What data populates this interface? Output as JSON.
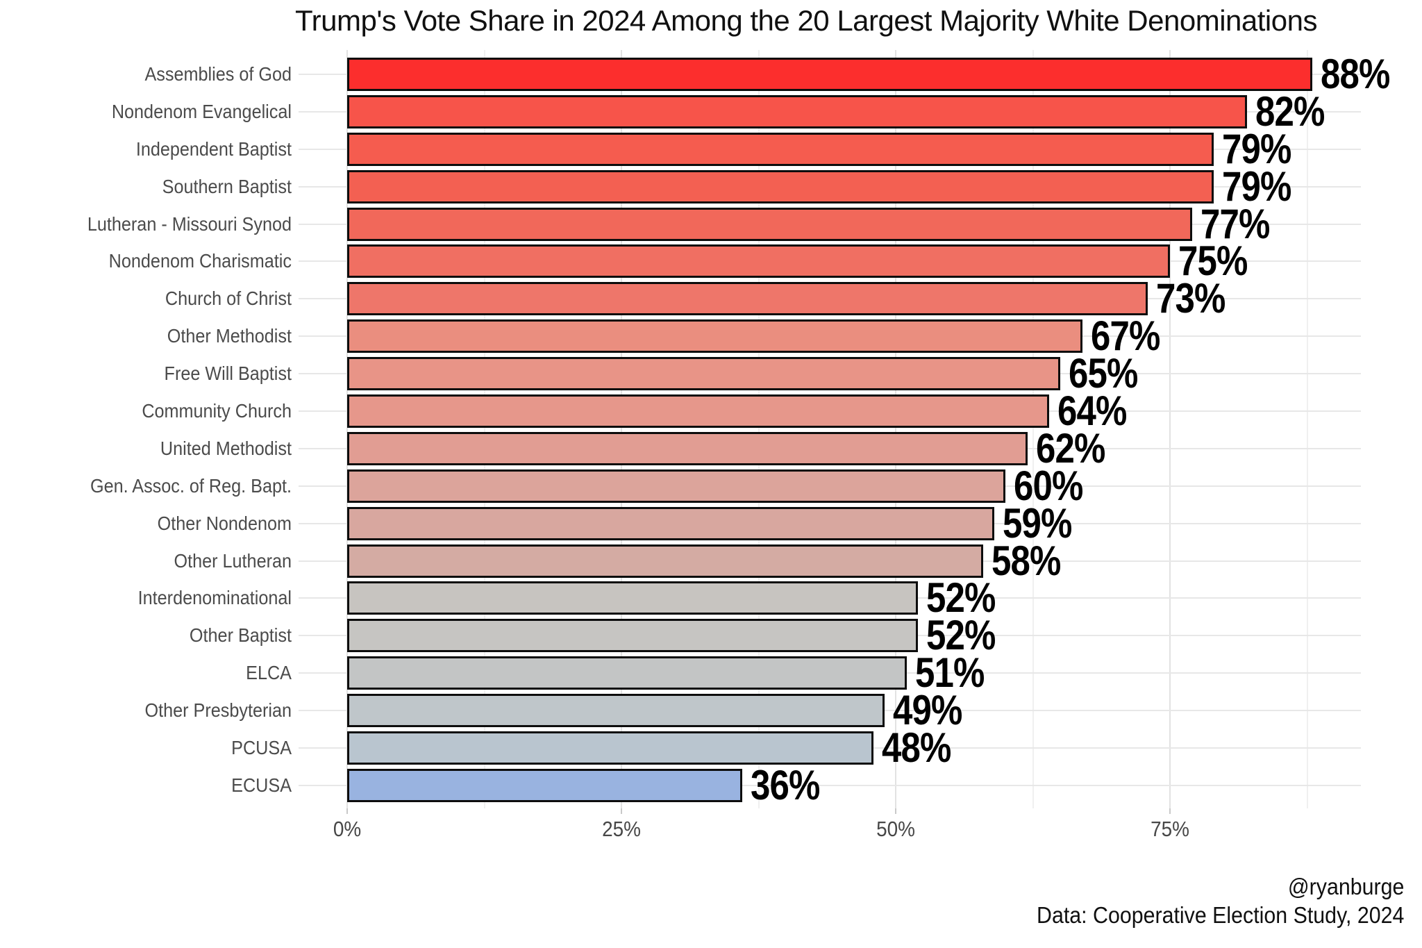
{
  "page": {
    "background": "#ffffff"
  },
  "chart_data": {
    "type": "bar",
    "orientation": "horizontal",
    "title": "Trump's Vote Share in 2024 Among the 20 Largest Majority White Denominations",
    "categories": [
      "Assemblies of God",
      "Nondenom Evangelical",
      "Independent Baptist",
      "Southern Baptist",
      "Lutheran - Missouri Synod",
      "Nondenom Charismatic",
      "Church of Christ",
      "Other Methodist",
      "Free Will Baptist",
      "Community Church",
      "United Methodist",
      "Gen. Assoc. of Reg. Bapt.",
      "Other Nondenom",
      "Other Lutheran",
      "Interdenominational",
      "Other Baptist",
      "ELCA",
      "Other Presbyterian",
      "PCUSA",
      "ECUSA"
    ],
    "values": [
      88,
      82,
      79,
      79,
      77,
      75,
      73,
      67,
      65,
      64,
      62,
      60,
      59,
      58,
      52,
      52,
      51,
      49,
      48,
      36
    ],
    "value_labels": [
      "88%",
      "82%",
      "79%",
      "79%",
      "77%",
      "75%",
      "73%",
      "67%",
      "65%",
      "64%",
      "62%",
      "60%",
      "59%",
      "58%",
      "52%",
      "52%",
      "51%",
      "49%",
      "48%",
      "36%"
    ],
    "bar_colors": [
      "#FC2E2D",
      "#F7544A",
      "#F55C4F",
      "#F36052",
      "#F1685A",
      "#F06F62",
      "#EE766A",
      "#EA8E7F",
      "#E89487",
      "#E6978B",
      "#E19D93",
      "#DCA49B",
      "#D8A79F",
      "#D4ABA3",
      "#C7C4C0",
      "#C6C5C2",
      "#C3C5C5",
      "#BFC6CA",
      "#B9C5CF",
      "#99B3E0"
    ],
    "xlabel": "",
    "ylabel": "",
    "x_tick_labels": [
      "0%",
      "25%",
      "50%",
      "75%"
    ],
    "x_tick_values": [
      0,
      25,
      50,
      75
    ],
    "x_minor_grid_values": [
      12.5,
      37.5,
      62.5,
      87.5
    ],
    "xlim": [
      0,
      92.4
    ],
    "grid": "light gray vertical major+minor lines; light gray horizontal line per category",
    "legend": "none"
  },
  "footer": {
    "handle": "@ryanburge",
    "source": "Data: Cooperative Election Study, 2024"
  },
  "colors": {
    "background": "#ffffff",
    "bar_border": "#0d0d0d",
    "value_label": "#000000",
    "category_label": "#4b4b4b",
    "axis_label": "#474747",
    "grid_major": "#e2e2e2",
    "grid_minor": "#f0f0f0",
    "grid_row": "#e7e7e7",
    "title": "#101010",
    "top_bar_red": "#FC2E2D",
    "bottom_bar_blue": "#99B3E0"
  }
}
